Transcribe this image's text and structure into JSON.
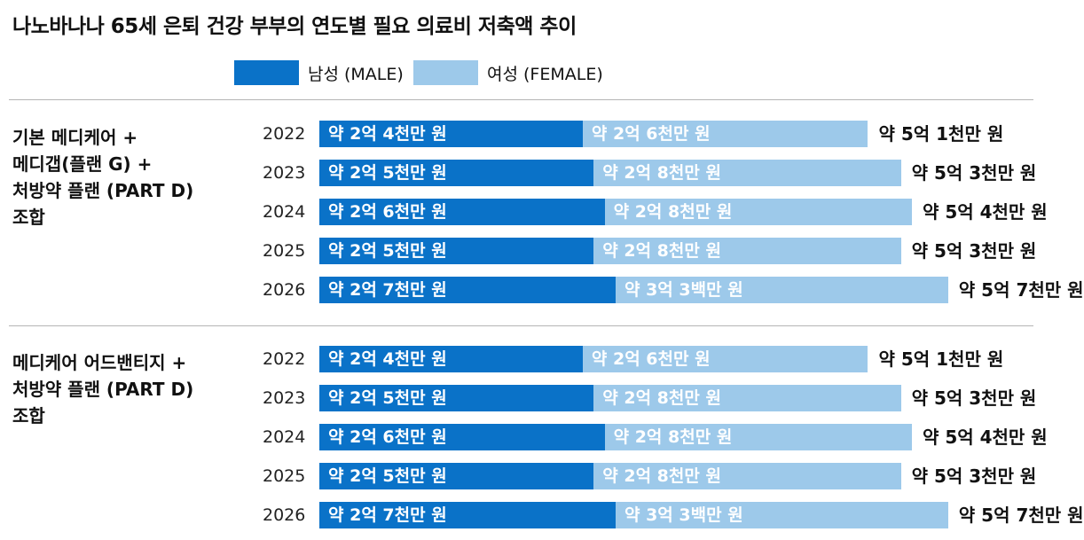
{
  "chart_data": {
    "type": "bar",
    "stacked": true,
    "orientation": "horizontal",
    "title": "나노바나나 65세 은퇴 건강 부부의 연도별 필요 의료비 저축액 추이",
    "unit": "만 원",
    "legend": [
      {
        "name": "남성 (MALE)",
        "color": "#0a72c8"
      },
      {
        "name": "여성 (FEMALE)",
        "color": "#9dc9ea"
      }
    ],
    "groups": [
      {
        "label_lines": [
          "기본 메디케어 +",
          "메디갭(플랜 G) +",
          "처방약 플랜 (PART D)",
          "조합"
        ],
        "rows": [
          {
            "year": "2022",
            "male": 24000,
            "female": 26000,
            "total": 51000,
            "male_label": "약 2억 4천만 원",
            "female_label": "약 2억 6천만 원",
            "total_label": "약 5억 1천만 원"
          },
          {
            "year": "2023",
            "male": 25000,
            "female": 28000,
            "total": 53000,
            "male_label": "약 2억 5천만 원",
            "female_label": "약 2억 8천만 원",
            "total_label": "약 5억 3천만 원"
          },
          {
            "year": "2024",
            "male": 26000,
            "female": 28000,
            "total": 54000,
            "male_label": "약 2억 6천만 원",
            "female_label": "약 2억 8천만 원",
            "total_label": "약 5억 4천만 원"
          },
          {
            "year": "2025",
            "male": 25000,
            "female": 28000,
            "total": 53000,
            "male_label": "약 2억 5천만 원",
            "female_label": "약 2억 8천만 원",
            "total_label": "약 5억 3천만 원"
          },
          {
            "year": "2026",
            "male": 27000,
            "female": 30300,
            "total": 57000,
            "male_label": "약 2억 7천만 원",
            "female_label": "약 3억 3백만 원",
            "total_label": "약 5억 7천만 원"
          }
        ]
      },
      {
        "label_lines": [
          "메디케어 어드밴티지 +",
          "처방약 플랜 (PART D)",
          "조합"
        ],
        "rows": [
          {
            "year": "2022",
            "male": 24000,
            "female": 26000,
            "total": 51000,
            "male_label": "약 2억 4천만 원",
            "female_label": "약 2억 6천만 원",
            "total_label": "약 5억 1천만 원"
          },
          {
            "year": "2023",
            "male": 25000,
            "female": 28000,
            "total": 53000,
            "male_label": "약 2억 5천만 원",
            "female_label": "약 2억 8천만 원",
            "total_label": "약 5억 3천만 원"
          },
          {
            "year": "2024",
            "male": 26000,
            "female": 28000,
            "total": 54000,
            "male_label": "약 2억 6천만 원",
            "female_label": "약 2억 8천만 원",
            "total_label": "약 5억 4천만 원"
          },
          {
            "year": "2025",
            "male": 25000,
            "female": 28000,
            "total": 53000,
            "male_label": "약 2억 5천만 원",
            "female_label": "약 2억 8천만 원",
            "total_label": "약 5억 3천만 원"
          },
          {
            "year": "2026",
            "male": 27000,
            "female": 30300,
            "total": 57000,
            "male_label": "약 2억 7천만 원",
            "female_label": "약 3억 3백만 원",
            "total_label": "약 5억 7천만 원"
          }
        ]
      }
    ]
  }
}
